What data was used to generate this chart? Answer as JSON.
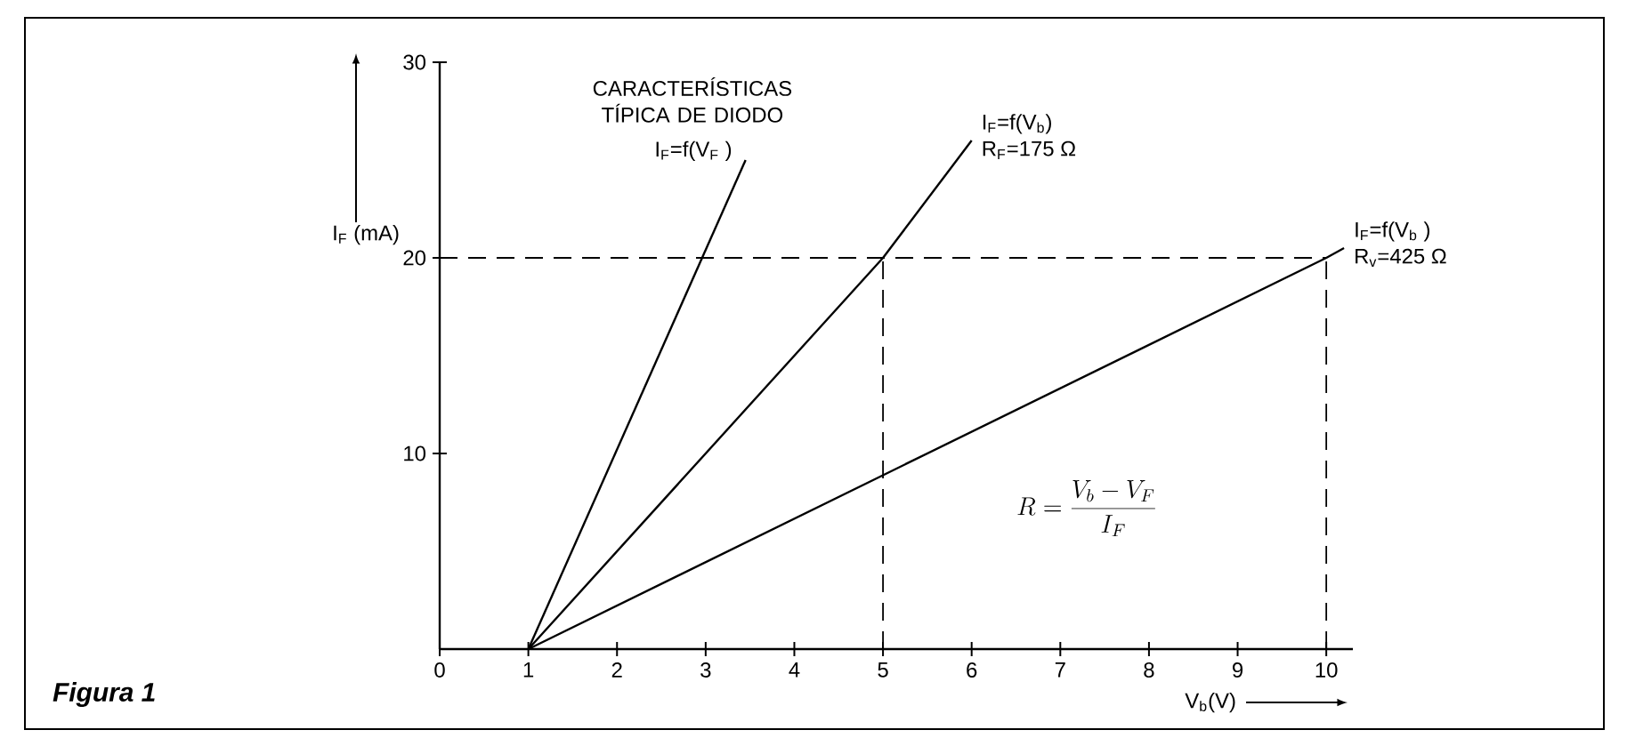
{
  "chart_data": {
    "type": "line",
    "title": "Figura 1",
    "xlabel": "V$_{b}$(V)",
    "ylabel": "I$_{F}$ (mA)",
    "xlim": [
      0,
      10.3
    ],
    "ylim": [
      0,
      30
    ],
    "xticks": [
      0,
      1,
      2,
      3,
      4,
      5,
      6,
      7,
      8,
      9,
      10
    ],
    "yticks": [
      10,
      20,
      30
    ],
    "series": [
      {
        "name": "I$_{F}$=f(V$_{F}$ )",
        "color": "#000000",
        "x": [
          1,
          3.45
        ],
        "values": [
          0,
          25
        ]
      },
      {
        "name": "I$_{F}$=f(V$_{b}$)",
        "color": "#000000",
        "x": [
          1,
          5,
          6
        ],
        "values": [
          0,
          20,
          26
        ]
      },
      {
        "name": "I$_{F}$=f(V$_{b}$ )",
        "color": "#000000",
        "x": [
          1,
          10,
          10.2
        ],
        "values": [
          0,
          20,
          20.5
        ]
      }
    ],
    "ref_lines": [
      {
        "axis": "y",
        "value": 20,
        "line_style": "dashed"
      },
      {
        "axis": "x",
        "value": 5,
        "line_style": "dashed"
      },
      {
        "axis": "x",
        "value": 10,
        "line_style": "dashed"
      }
    ],
    "annotations": [
      "CARACTERÍSTICAS TÍPICA DE DIODO",
      "R$_{F}$=175 Ω",
      "R$_{v}$=425 Ω",
      "R=\\frac{V_b - V_F}{I_F}"
    ],
    "line_style": "solid",
    "marker": "none",
    "grid": false
  }
}
